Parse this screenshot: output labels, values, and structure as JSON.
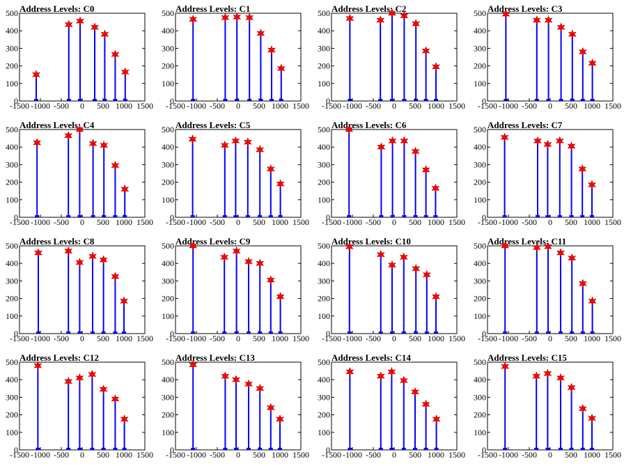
{
  "chart_data": [
    {
      "type": "scatter",
      "title": "Address Levels: C0",
      "xlim": [
        -1500,
        1500
      ],
      "ylim": [
        0,
        500
      ],
      "xticks": [
        "-1500",
        "-1000",
        "-500",
        "0",
        "500",
        "1000",
        "1500"
      ],
      "yticks": [
        "0",
        "100",
        "200",
        "300",
        "400",
        "500"
      ],
      "peaks": [
        {
          "x": -1100,
          "y": 150
        },
        {
          "x": -320,
          "y": 435
        },
        {
          "x": -50,
          "y": 455
        },
        {
          "x": 300,
          "y": 420
        },
        {
          "x": 540,
          "y": 380
        },
        {
          "x": 790,
          "y": 265
        },
        {
          "x": 1030,
          "y": 165
        }
      ]
    },
    {
      "type": "scatter",
      "title": "Address Levels: C1",
      "xlim": [
        -1500,
        1500
      ],
      "ylim": [
        0,
        500
      ],
      "xticks": [
        "-1500",
        "-1000",
        "-500",
        "0",
        "500",
        "1000",
        "1500"
      ],
      "yticks": [
        "0",
        "100",
        "200",
        "300",
        "400",
        "500"
      ],
      "peaks": [
        {
          "x": -1080,
          "y": 465
        },
        {
          "x": -310,
          "y": 475
        },
        {
          "x": -30,
          "y": 478
        },
        {
          "x": 270,
          "y": 475
        },
        {
          "x": 540,
          "y": 385
        },
        {
          "x": 800,
          "y": 290
        },
        {
          "x": 1030,
          "y": 185
        }
      ]
    },
    {
      "type": "scatter",
      "title": "Address Levels: C2",
      "xlim": [
        -1500,
        1500
      ],
      "ylim": [
        0,
        500
      ],
      "xticks": [
        "-1500",
        "-1000",
        "-500",
        "0",
        "500",
        "1000",
        "1500"
      ],
      "yticks": [
        "0",
        "100",
        "200",
        "300",
        "400",
        "500"
      ],
      "peaks": [
        {
          "x": -1060,
          "y": 470
        },
        {
          "x": -330,
          "y": 460
        },
        {
          "x": -50,
          "y": 500
        },
        {
          "x": 240,
          "y": 485
        },
        {
          "x": 520,
          "y": 440
        },
        {
          "x": 760,
          "y": 285
        },
        {
          "x": 1000,
          "y": 195
        }
      ]
    },
    {
      "type": "scatter",
      "title": "Address Levels: C3",
      "xlim": [
        -1500,
        1500
      ],
      "ylim": [
        0,
        500
      ],
      "xticks": [
        "-1500",
        "-1000",
        "-500",
        "0",
        "500",
        "1000",
        "1500"
      ],
      "yticks": [
        "0",
        "100",
        "200",
        "300",
        "400",
        "500"
      ],
      "peaks": [
        {
          "x": -1060,
          "y": 495
        },
        {
          "x": -320,
          "y": 460
        },
        {
          "x": -40,
          "y": 460
        },
        {
          "x": 260,
          "y": 420
        },
        {
          "x": 530,
          "y": 380
        },
        {
          "x": 780,
          "y": 280
        },
        {
          "x": 1010,
          "y": 215
        }
      ]
    },
    {
      "type": "scatter",
      "title": "Address Levels: C4",
      "xlim": [
        -1500,
        1500
      ],
      "ylim": [
        0,
        500
      ],
      "xticks": [
        "-1500",
        "-1000",
        "-500",
        "0",
        "500",
        "1000",
        "1500"
      ],
      "yticks": [
        "0",
        "100",
        "200",
        "300",
        "400",
        "500"
      ],
      "peaks": [
        {
          "x": -1080,
          "y": 425
        },
        {
          "x": -330,
          "y": 465
        },
        {
          "x": -60,
          "y": 500
        },
        {
          "x": 260,
          "y": 420
        },
        {
          "x": 520,
          "y": 410
        },
        {
          "x": 790,
          "y": 295
        },
        {
          "x": 1020,
          "y": 160
        }
      ]
    },
    {
      "type": "scatter",
      "title": "Address Levels: C5",
      "xlim": [
        -1500,
        1500
      ],
      "ylim": [
        0,
        500
      ],
      "xticks": [
        "-1500",
        "-1000",
        "-500",
        "0",
        "500",
        "1000",
        "1500"
      ],
      "yticks": [
        "0",
        "100",
        "200",
        "300",
        "400",
        "500"
      ],
      "peaks": [
        {
          "x": -1090,
          "y": 445
        },
        {
          "x": -320,
          "y": 410
        },
        {
          "x": -60,
          "y": 435
        },
        {
          "x": 230,
          "y": 428
        },
        {
          "x": 520,
          "y": 385
        },
        {
          "x": 780,
          "y": 275
        },
        {
          "x": 1010,
          "y": 190
        }
      ]
    },
    {
      "type": "scatter",
      "title": "Address Levels: C6",
      "xlim": [
        -1500,
        1500
      ],
      "ylim": [
        0,
        500
      ],
      "xticks": [
        "-1500",
        "-1000",
        "-500",
        "0",
        "500",
        "1000",
        "1500"
      ],
      "yticks": [
        "0",
        "100",
        "200",
        "300",
        "400",
        "500"
      ],
      "peaks": [
        {
          "x": -1080,
          "y": 500
        },
        {
          "x": -310,
          "y": 400
        },
        {
          "x": -40,
          "y": 435
        },
        {
          "x": 240,
          "y": 435
        },
        {
          "x": 510,
          "y": 375
        },
        {
          "x": 760,
          "y": 270
        },
        {
          "x": 990,
          "y": 165
        }
      ]
    },
    {
      "type": "scatter",
      "title": "Address Levels: C7",
      "xlim": [
        -1500,
        1500
      ],
      "ylim": [
        0,
        500
      ],
      "xticks": [
        "-1500",
        "-1000",
        "-500",
        "0",
        "500",
        "1000",
        "1500"
      ],
      "yticks": [
        "0",
        "100",
        "200",
        "300",
        "400",
        "500"
      ],
      "peaks": [
        {
          "x": -1090,
          "y": 455
        },
        {
          "x": -300,
          "y": 435
        },
        {
          "x": -60,
          "y": 415
        },
        {
          "x": 230,
          "y": 435
        },
        {
          "x": 510,
          "y": 405
        },
        {
          "x": 770,
          "y": 275
        },
        {
          "x": 1000,
          "y": 185
        }
      ]
    },
    {
      "type": "scatter",
      "title": "Address Levels: C8",
      "xlim": [
        -1500,
        1500
      ],
      "ylim": [
        0,
        500
      ],
      "xticks": [
        "-1500",
        "-1000",
        "-500",
        "0",
        "500",
        "1000",
        "1500"
      ],
      "yticks": [
        "0",
        "100",
        "200",
        "300",
        "400",
        "500"
      ],
      "peaks": [
        {
          "x": -1050,
          "y": 460
        },
        {
          "x": -330,
          "y": 470
        },
        {
          "x": -60,
          "y": 405
        },
        {
          "x": 250,
          "y": 440
        },
        {
          "x": 510,
          "y": 420
        },
        {
          "x": 790,
          "y": 325
        },
        {
          "x": 1000,
          "y": 185
        }
      ]
    },
    {
      "type": "scatter",
      "title": "Address Levels: C9",
      "xlim": [
        -1500,
        1500
      ],
      "ylim": [
        0,
        500
      ],
      "xticks": [
        "-1500",
        "-1000",
        "-500",
        "0",
        "500",
        "1000",
        "1500"
      ],
      "yticks": [
        "0",
        "100",
        "200",
        "300",
        "400",
        "500"
      ],
      "peaks": [
        {
          "x": -1080,
          "y": 500
        },
        {
          "x": -330,
          "y": 435
        },
        {
          "x": -40,
          "y": 470
        },
        {
          "x": 250,
          "y": 410
        },
        {
          "x": 520,
          "y": 400
        },
        {
          "x": 780,
          "y": 305
        },
        {
          "x": 1010,
          "y": 210
        }
      ]
    },
    {
      "type": "scatter",
      "title": "Address Levels: C10",
      "xlim": [
        -1500,
        1500
      ],
      "ylim": [
        0,
        500
      ],
      "xticks": [
        "-1500",
        "-1000",
        "-500",
        "0",
        "500",
        "1000",
        "1500"
      ],
      "yticks": [
        "0",
        "100",
        "200",
        "300",
        "400",
        "500"
      ],
      "peaks": [
        {
          "x": -1070,
          "y": 495
        },
        {
          "x": -320,
          "y": 450
        },
        {
          "x": -50,
          "y": 390
        },
        {
          "x": 230,
          "y": 435
        },
        {
          "x": 520,
          "y": 370
        },
        {
          "x": 780,
          "y": 335
        },
        {
          "x": 1000,
          "y": 210
        }
      ]
    },
    {
      "type": "scatter",
      "title": "Address Levels: C11",
      "xlim": [
        -1500,
        1500
      ],
      "ylim": [
        0,
        500
      ],
      "xticks": [
        "-1500",
        "-1000",
        "-500",
        "0",
        "500",
        "1000",
        "1500"
      ],
      "yticks": [
        "0",
        "100",
        "200",
        "300",
        "400",
        "500"
      ],
      "peaks": [
        {
          "x": -1080,
          "y": 500
        },
        {
          "x": -320,
          "y": 490
        },
        {
          "x": -50,
          "y": 495
        },
        {
          "x": 250,
          "y": 460
        },
        {
          "x": 520,
          "y": 430
        },
        {
          "x": 780,
          "y": 285
        },
        {
          "x": 1010,
          "y": 185
        }
      ]
    },
    {
      "type": "scatter",
      "title": "Address Levels: C12",
      "xlim": [
        -1500,
        1500
      ],
      "ylim": [
        0,
        500
      ],
      "xticks": [
        "-1500",
        "-1000",
        "-500",
        "0",
        "500",
        "1000",
        "1500"
      ],
      "yticks": [
        "0",
        "100",
        "200",
        "300",
        "400",
        "500"
      ],
      "peaks": [
        {
          "x": -1060,
          "y": 480
        },
        {
          "x": -330,
          "y": 390
        },
        {
          "x": -60,
          "y": 410
        },
        {
          "x": 240,
          "y": 430
        },
        {
          "x": 510,
          "y": 345
        },
        {
          "x": 790,
          "y": 290
        },
        {
          "x": 1010,
          "y": 175
        }
      ]
    },
    {
      "type": "scatter",
      "title": "Address Levels: C13",
      "xlim": [
        -1500,
        1500
      ],
      "ylim": [
        0,
        500
      ],
      "xticks": [
        "-1500",
        "-1000",
        "-500",
        "0",
        "500",
        "1000",
        "1500"
      ],
      "yticks": [
        "0",
        "100",
        "200",
        "300",
        "400",
        "500"
      ],
      "peaks": [
        {
          "x": -1080,
          "y": 485
        },
        {
          "x": -310,
          "y": 420
        },
        {
          "x": -50,
          "y": 400
        },
        {
          "x": 250,
          "y": 375
        },
        {
          "x": 520,
          "y": 350
        },
        {
          "x": 780,
          "y": 240
        },
        {
          "x": 1000,
          "y": 175
        }
      ]
    },
    {
      "type": "scatter",
      "title": "Address Levels: C14",
      "xlim": [
        -1500,
        1500
      ],
      "ylim": [
        0,
        500
      ],
      "xticks": [
        "-1500",
        "-1000",
        "-500",
        "0",
        "500",
        "1000",
        "1500"
      ],
      "yticks": [
        "0",
        "100",
        "200",
        "300",
        "400",
        "500"
      ],
      "peaks": [
        {
          "x": -1060,
          "y": 445
        },
        {
          "x": -320,
          "y": 420
        },
        {
          "x": -60,
          "y": 445
        },
        {
          "x": 230,
          "y": 395
        },
        {
          "x": 500,
          "y": 330
        },
        {
          "x": 760,
          "y": 260
        },
        {
          "x": 1010,
          "y": 175
        }
      ]
    },
    {
      "type": "scatter",
      "title": "Address Levels: C15",
      "xlim": [
        -1500,
        1500
      ],
      "ylim": [
        0,
        500
      ],
      "xticks": [
        "-1500",
        "-1000",
        "-500",
        "0",
        "500",
        "1000",
        "1500"
      ],
      "yticks": [
        "0",
        "100",
        "200",
        "300",
        "400",
        "500"
      ],
      "peaks": [
        {
          "x": -1080,
          "y": 475
        },
        {
          "x": -330,
          "y": 420
        },
        {
          "x": -60,
          "y": 435
        },
        {
          "x": 250,
          "y": 410
        },
        {
          "x": 510,
          "y": 355
        },
        {
          "x": 780,
          "y": 235
        },
        {
          "x": 1000,
          "y": 180
        }
      ]
    }
  ],
  "colors": {
    "spike": "#0000ff",
    "marker": "#ff0000",
    "axis": "#000000",
    "background": "#ffffff"
  },
  "marker_shape": "star"
}
